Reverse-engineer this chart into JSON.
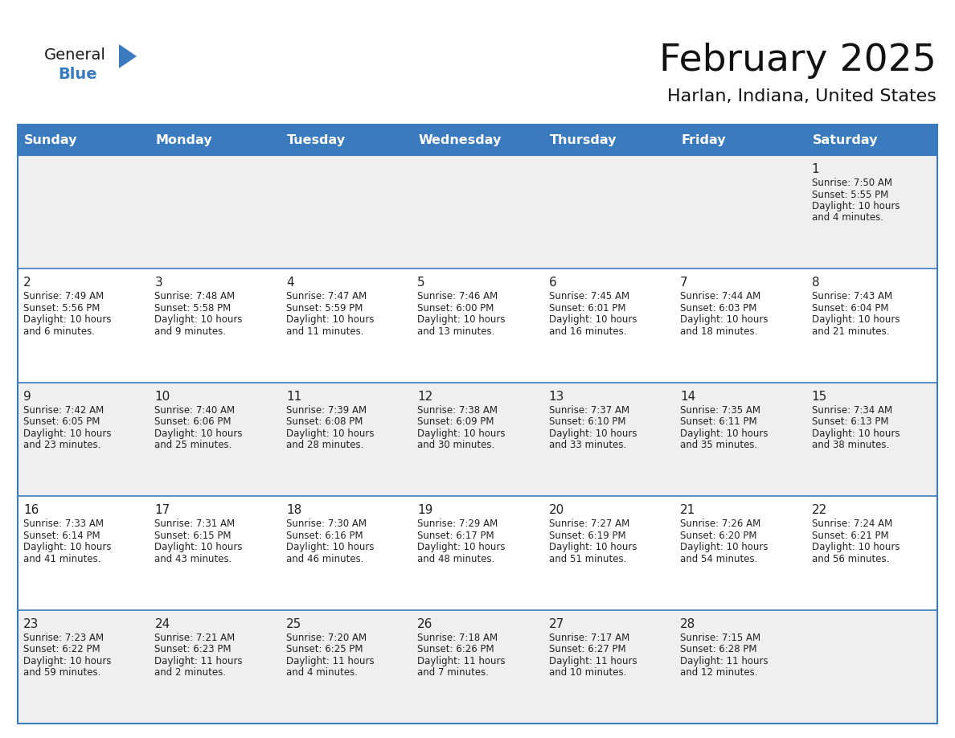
{
  "title": "February 2025",
  "subtitle": "Harlan, Indiana, United States",
  "header_bg": "#3a7abf",
  "header_text": "#ffffff",
  "cell_bg_even": "#efefef",
  "cell_bg_odd": "#ffffff",
  "border_color": "#3a7abf",
  "text_color": "#222222",
  "day_headers": [
    "Sunday",
    "Monday",
    "Tuesday",
    "Wednesday",
    "Thursday",
    "Friday",
    "Saturday"
  ],
  "days": [
    {
      "day": 1,
      "col": 6,
      "row": 0,
      "sunrise": "7:50 AM",
      "sunset": "5:55 PM",
      "daylight_line1": "Daylight: 10 hours",
      "daylight_line2": "and 4 minutes."
    },
    {
      "day": 2,
      "col": 0,
      "row": 1,
      "sunrise": "7:49 AM",
      "sunset": "5:56 PM",
      "daylight_line1": "Daylight: 10 hours",
      "daylight_line2": "and 6 minutes."
    },
    {
      "day": 3,
      "col": 1,
      "row": 1,
      "sunrise": "7:48 AM",
      "sunset": "5:58 PM",
      "daylight_line1": "Daylight: 10 hours",
      "daylight_line2": "and 9 minutes."
    },
    {
      "day": 4,
      "col": 2,
      "row": 1,
      "sunrise": "7:47 AM",
      "sunset": "5:59 PM",
      "daylight_line1": "Daylight: 10 hours",
      "daylight_line2": "and 11 minutes."
    },
    {
      "day": 5,
      "col": 3,
      "row": 1,
      "sunrise": "7:46 AM",
      "sunset": "6:00 PM",
      "daylight_line1": "Daylight: 10 hours",
      "daylight_line2": "and 13 minutes."
    },
    {
      "day": 6,
      "col": 4,
      "row": 1,
      "sunrise": "7:45 AM",
      "sunset": "6:01 PM",
      "daylight_line1": "Daylight: 10 hours",
      "daylight_line2": "and 16 minutes."
    },
    {
      "day": 7,
      "col": 5,
      "row": 1,
      "sunrise": "7:44 AM",
      "sunset": "6:03 PM",
      "daylight_line1": "Daylight: 10 hours",
      "daylight_line2": "and 18 minutes."
    },
    {
      "day": 8,
      "col": 6,
      "row": 1,
      "sunrise": "7:43 AM",
      "sunset": "6:04 PM",
      "daylight_line1": "Daylight: 10 hours",
      "daylight_line2": "and 21 minutes."
    },
    {
      "day": 9,
      "col": 0,
      "row": 2,
      "sunrise": "7:42 AM",
      "sunset": "6:05 PM",
      "daylight_line1": "Daylight: 10 hours",
      "daylight_line2": "and 23 minutes."
    },
    {
      "day": 10,
      "col": 1,
      "row": 2,
      "sunrise": "7:40 AM",
      "sunset": "6:06 PM",
      "daylight_line1": "Daylight: 10 hours",
      "daylight_line2": "and 25 minutes."
    },
    {
      "day": 11,
      "col": 2,
      "row": 2,
      "sunrise": "7:39 AM",
      "sunset": "6:08 PM",
      "daylight_line1": "Daylight: 10 hours",
      "daylight_line2": "and 28 minutes."
    },
    {
      "day": 12,
      "col": 3,
      "row": 2,
      "sunrise": "7:38 AM",
      "sunset": "6:09 PM",
      "daylight_line1": "Daylight: 10 hours",
      "daylight_line2": "and 30 minutes."
    },
    {
      "day": 13,
      "col": 4,
      "row": 2,
      "sunrise": "7:37 AM",
      "sunset": "6:10 PM",
      "daylight_line1": "Daylight: 10 hours",
      "daylight_line2": "and 33 minutes."
    },
    {
      "day": 14,
      "col": 5,
      "row": 2,
      "sunrise": "7:35 AM",
      "sunset": "6:11 PM",
      "daylight_line1": "Daylight: 10 hours",
      "daylight_line2": "and 35 minutes."
    },
    {
      "day": 15,
      "col": 6,
      "row": 2,
      "sunrise": "7:34 AM",
      "sunset": "6:13 PM",
      "daylight_line1": "Daylight: 10 hours",
      "daylight_line2": "and 38 minutes."
    },
    {
      "day": 16,
      "col": 0,
      "row": 3,
      "sunrise": "7:33 AM",
      "sunset": "6:14 PM",
      "daylight_line1": "Daylight: 10 hours",
      "daylight_line2": "and 41 minutes."
    },
    {
      "day": 17,
      "col": 1,
      "row": 3,
      "sunrise": "7:31 AM",
      "sunset": "6:15 PM",
      "daylight_line1": "Daylight: 10 hours",
      "daylight_line2": "and 43 minutes."
    },
    {
      "day": 18,
      "col": 2,
      "row": 3,
      "sunrise": "7:30 AM",
      "sunset": "6:16 PM",
      "daylight_line1": "Daylight: 10 hours",
      "daylight_line2": "and 46 minutes."
    },
    {
      "day": 19,
      "col": 3,
      "row": 3,
      "sunrise": "7:29 AM",
      "sunset": "6:17 PM",
      "daylight_line1": "Daylight: 10 hours",
      "daylight_line2": "and 48 minutes."
    },
    {
      "day": 20,
      "col": 4,
      "row": 3,
      "sunrise": "7:27 AM",
      "sunset": "6:19 PM",
      "daylight_line1": "Daylight: 10 hours",
      "daylight_line2": "and 51 minutes."
    },
    {
      "day": 21,
      "col": 5,
      "row": 3,
      "sunrise": "7:26 AM",
      "sunset": "6:20 PM",
      "daylight_line1": "Daylight: 10 hours",
      "daylight_line2": "and 54 minutes."
    },
    {
      "day": 22,
      "col": 6,
      "row": 3,
      "sunrise": "7:24 AM",
      "sunset": "6:21 PM",
      "daylight_line1": "Daylight: 10 hours",
      "daylight_line2": "and 56 minutes."
    },
    {
      "day": 23,
      "col": 0,
      "row": 4,
      "sunrise": "7:23 AM",
      "sunset": "6:22 PM",
      "daylight_line1": "Daylight: 10 hours",
      "daylight_line2": "and 59 minutes."
    },
    {
      "day": 24,
      "col": 1,
      "row": 4,
      "sunrise": "7:21 AM",
      "sunset": "6:23 PM",
      "daylight_line1": "Daylight: 11 hours",
      "daylight_line2": "and 2 minutes."
    },
    {
      "day": 25,
      "col": 2,
      "row": 4,
      "sunrise": "7:20 AM",
      "sunset": "6:25 PM",
      "daylight_line1": "Daylight: 11 hours",
      "daylight_line2": "and 4 minutes."
    },
    {
      "day": 26,
      "col": 3,
      "row": 4,
      "sunrise": "7:18 AM",
      "sunset": "6:26 PM",
      "daylight_line1": "Daylight: 11 hours",
      "daylight_line2": "and 7 minutes."
    },
    {
      "day": 27,
      "col": 4,
      "row": 4,
      "sunrise": "7:17 AM",
      "sunset": "6:27 PM",
      "daylight_line1": "Daylight: 11 hours",
      "daylight_line2": "and 10 minutes."
    },
    {
      "day": 28,
      "col": 5,
      "row": 4,
      "sunrise": "7:15 AM",
      "sunset": "6:28 PM",
      "daylight_line1": "Daylight: 11 hours",
      "daylight_line2": "and 12 minutes."
    }
  ],
  "num_rows": 5,
  "logo_triangle_color": "#3a7abf",
  "logo_blue_color": "#3a7abf",
  "logo_black_color": "#1a1a1a"
}
